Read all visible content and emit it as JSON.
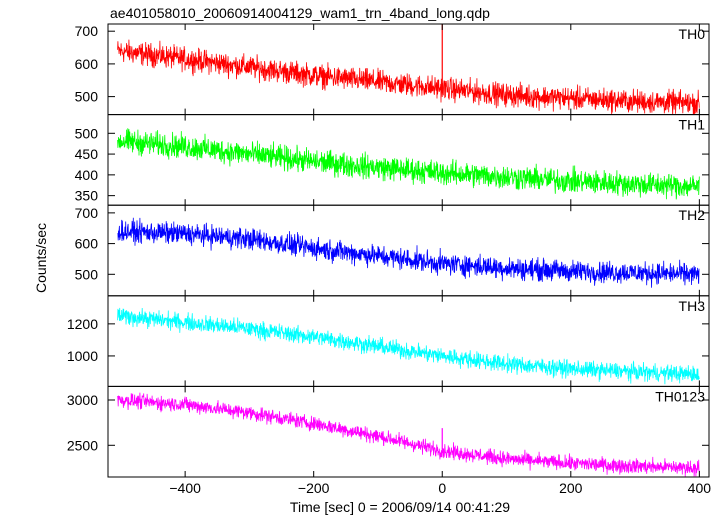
{
  "chart_data": {
    "type": "line",
    "title": "ae401058010_20060914004129_wam1_trn_4band_long.qdp",
    "xlabel": "Time [sec] 0 = 2006/09/14 00:41:29",
    "ylabel": "Counts/sec",
    "xlim": [
      -520,
      415
    ],
    "xticks": [
      -400,
      -200,
      0,
      200,
      400
    ],
    "xtick_labels": [
      "−400",
      "−200",
      "0",
      "200",
      "400"
    ],
    "grid": false,
    "panels": [
      {
        "name": "TH0",
        "color": "#ff0000",
        "ylim": [
          445,
          722
        ],
        "yticks": [
          500,
          600,
          700
        ],
        "ytick_labels": [
          "500",
          "600",
          "700"
        ],
        "trend": {
          "x": [
            -505,
            -400,
            -300,
            -200,
            -100,
            0,
            100,
            200,
            300,
            400
          ],
          "y": [
            640,
            615,
            590,
            565,
            545,
            525,
            505,
            495,
            485,
            480
          ]
        },
        "noise_amplitude": 30,
        "spikes": [
          {
            "x": 0,
            "y": 735
          }
        ]
      },
      {
        "name": "TH1",
        "color": "#00ff00",
        "ylim": [
          327,
          545
        ],
        "yticks": [
          350,
          400,
          450,
          500
        ],
        "ytick_labels": [
          "350",
          "400",
          "450",
          "500"
        ],
        "trend": {
          "x": [
            -505,
            -400,
            -300,
            -200,
            -100,
            0,
            100,
            200,
            300,
            400
          ],
          "y": [
            482,
            468,
            450,
            432,
            418,
            405,
            395,
            385,
            378,
            372
          ]
        },
        "noise_amplitude": 25,
        "spikes": []
      },
      {
        "name": "TH2",
        "color": "#0000ff",
        "ylim": [
          430,
          725
        ],
        "yticks": [
          500,
          600,
          700
        ],
        "ytick_labels": [
          "500",
          "600",
          "700"
        ],
        "trend": {
          "x": [
            -505,
            -400,
            -300,
            -200,
            -100,
            0,
            100,
            200,
            300,
            400
          ],
          "y": [
            640,
            632,
            615,
            585,
            560,
            535,
            520,
            510,
            505,
            500
          ]
        },
        "noise_amplitude": 30,
        "spikes": []
      },
      {
        "name": "TH3",
        "color": "#00ffff",
        "ylim": [
          810,
          1375
        ],
        "yticks": [
          1000,
          1200
        ],
        "ytick_labels": [
          "1000",
          "1200"
        ],
        "trend": {
          "x": [
            -505,
            -400,
            -300,
            -200,
            -100,
            0,
            100,
            200,
            300,
            400
          ],
          "y": [
            1250,
            1210,
            1170,
            1120,
            1060,
            1000,
            950,
            920,
            900,
            885
          ]
        },
        "noise_amplitude": 45,
        "spikes": []
      },
      {
        "name": "TH0123",
        "color": "#ff00ff",
        "ylim": [
          2150,
          3150
        ],
        "yticks": [
          2500,
          3000
        ],
        "ytick_labels": [
          "2500",
          "3000"
        ],
        "trend": {
          "x": [
            -505,
            -400,
            -300,
            -200,
            -100,
            0,
            100,
            200,
            300,
            400
          ],
          "y": [
            3000,
            2950,
            2860,
            2740,
            2600,
            2440,
            2350,
            2300,
            2270,
            2250
          ]
        },
        "noise_amplitude": 70,
        "spikes": [
          {
            "x": 0,
            "y": 2690
          }
        ]
      }
    ]
  }
}
